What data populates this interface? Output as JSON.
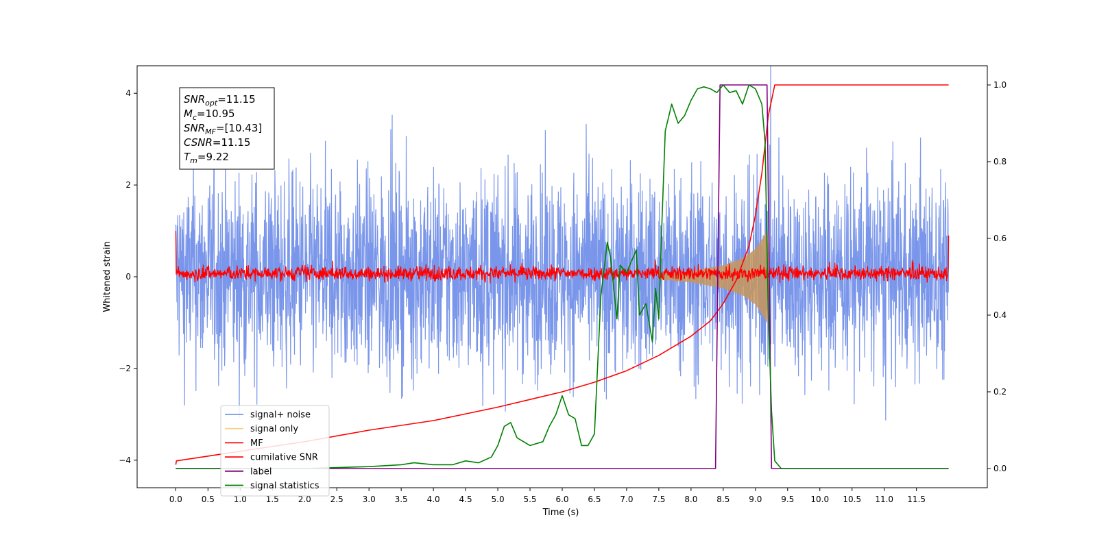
{
  "chart_data": {
    "type": "line",
    "xlabel": "Time (s)",
    "ylabel_left": "Whitened strain",
    "xlim": [
      -0.6,
      12.6
    ],
    "ylim_left": [
      -4.6,
      4.6
    ],
    "ylim_right": [
      -0.05,
      1.05
    ],
    "x_ticks": [
      0.0,
      0.5,
      1.0,
      1.5,
      2.0,
      2.5,
      3.0,
      3.5,
      4.0,
      4.5,
      5.0,
      5.5,
      6.0,
      6.5,
      7.0,
      7.5,
      8.0,
      8.5,
      9.0,
      9.5,
      10.0,
      10.5,
      11.0,
      11.5
    ],
    "x_tick_labels": [
      "0.0",
      "0.5",
      "1.0",
      "1.5",
      "2.0",
      "2.5",
      "3.0",
      "3.5",
      "4.0",
      "4.5",
      "5.0",
      "5.5",
      "6.0",
      "6.5",
      "7.0",
      "7.5",
      "8.0",
      "8.5",
      "9.0",
      "9.5",
      "10.0",
      "10.5",
      "11.0",
      "11.5"
    ],
    "y_left_ticks": [
      -4,
      -2,
      0,
      2,
      4
    ],
    "y_left_tick_labels": [
      "−4",
      "−2",
      "0",
      "2",
      "4"
    ],
    "y_right_ticks": [
      0.0,
      0.2,
      0.4,
      0.6,
      0.8,
      1.0
    ],
    "y_right_tick_labels": [
      "0.0",
      "0.2",
      "0.4",
      "0.6",
      "0.8",
      "1.0"
    ],
    "grid": false,
    "legend_position": "lower-left",
    "series": [
      {
        "name": "signal+ noise",
        "axis": "left",
        "color": "#4169e1",
        "envelope": {
          "x": [
            0.0,
            12.0
          ],
          "upper": [
            3.0,
            3.0
          ],
          "lower": [
            -2.6,
            -2.6
          ]
        }
      },
      {
        "name": "signal only",
        "axis": "left",
        "color": "#daa520",
        "chirp": {
          "x": [
            7.5,
            8.0,
            8.5,
            8.8,
            9.0,
            9.1,
            9.18,
            9.22
          ],
          "amplitude": [
            0.06,
            0.12,
            0.25,
            0.4,
            0.6,
            0.8,
            1.0,
            0.0
          ]
        }
      },
      {
        "name": "MF",
        "axis": "left",
        "color": "#ff0000",
        "envelope": {
          "x": [
            0.0,
            12.0
          ],
          "upper": [
            0.3,
            0.3
          ],
          "lower": [
            -0.15,
            -0.15
          ]
        },
        "edge_values": [
          1.0,
          0.9
        ]
      },
      {
        "name": "cumilative SNR",
        "axis": "right",
        "color": "#ff0000",
        "x": [
          0.0,
          0.01,
          1.0,
          2.0,
          3.0,
          4.0,
          5.0,
          5.5,
          6.0,
          6.5,
          7.0,
          7.5,
          8.0,
          8.3,
          8.5,
          8.7,
          8.9,
          9.0,
          9.1,
          9.2,
          9.3,
          12.0
        ],
        "y": [
          0.01,
          0.02,
          0.045,
          0.07,
          0.1,
          0.125,
          0.16,
          0.18,
          0.2,
          0.225,
          0.255,
          0.295,
          0.345,
          0.385,
          0.43,
          0.49,
          0.58,
          0.66,
          0.77,
          0.92,
          1.0,
          1.0
        ]
      },
      {
        "name": "label",
        "axis": "right",
        "color": "#800080",
        "x": [
          0.0,
          8.38,
          8.45,
          9.18,
          9.25,
          12.0
        ],
        "y": [
          0.0,
          0.0,
          1.0,
          1.0,
          0.0,
          0.0
        ]
      },
      {
        "name": "signal statistics",
        "axis": "right",
        "color": "#008000",
        "x": [
          0.0,
          1.0,
          2.0,
          3.0,
          3.5,
          3.7,
          4.0,
          4.3,
          4.5,
          4.7,
          4.9,
          5.0,
          5.1,
          5.2,
          5.3,
          5.5,
          5.7,
          5.8,
          5.9,
          6.0,
          6.1,
          6.2,
          6.3,
          6.4,
          6.5,
          6.6,
          6.7,
          6.75,
          6.85,
          6.9,
          7.0,
          7.1,
          7.15,
          7.2,
          7.3,
          7.4,
          7.45,
          7.5,
          7.55,
          7.6,
          7.7,
          7.8,
          7.9,
          8.0,
          8.1,
          8.2,
          8.3,
          8.4,
          8.5,
          8.6,
          8.7,
          8.8,
          8.9,
          9.0,
          9.1,
          9.15,
          9.2,
          9.25,
          9.3,
          9.4,
          9.5,
          10.0,
          11.0,
          12.0
        ],
        "y": [
          0.0,
          0.0,
          0.0,
          0.005,
          0.01,
          0.015,
          0.01,
          0.01,
          0.02,
          0.015,
          0.03,
          0.06,
          0.11,
          0.12,
          0.08,
          0.06,
          0.07,
          0.11,
          0.14,
          0.19,
          0.14,
          0.13,
          0.06,
          0.06,
          0.09,
          0.45,
          0.59,
          0.55,
          0.39,
          0.53,
          0.51,
          0.55,
          0.57,
          0.4,
          0.43,
          0.33,
          0.47,
          0.39,
          0.65,
          0.88,
          0.95,
          0.9,
          0.92,
          0.96,
          0.99,
          0.995,
          0.99,
          0.98,
          1.0,
          0.98,
          0.985,
          0.95,
          1.0,
          0.99,
          0.95,
          0.85,
          0.4,
          0.15,
          0.02,
          0.0,
          0.0,
          0.0,
          0.0,
          0.0
        ]
      }
    ],
    "annotation": {
      "lines": [
        {
          "base": "SNR",
          "sub": "opt",
          "value": "=11.15"
        },
        {
          "base": "M",
          "sub": "c",
          "value": "=10.95"
        },
        {
          "base": "SNR",
          "sub": "MF",
          "value": "=[10.43]"
        },
        {
          "base": "CSNR",
          "sub": "",
          "value": "=11.15"
        },
        {
          "base": "T",
          "sub": "m",
          "value": "=9.22"
        }
      ]
    }
  }
}
